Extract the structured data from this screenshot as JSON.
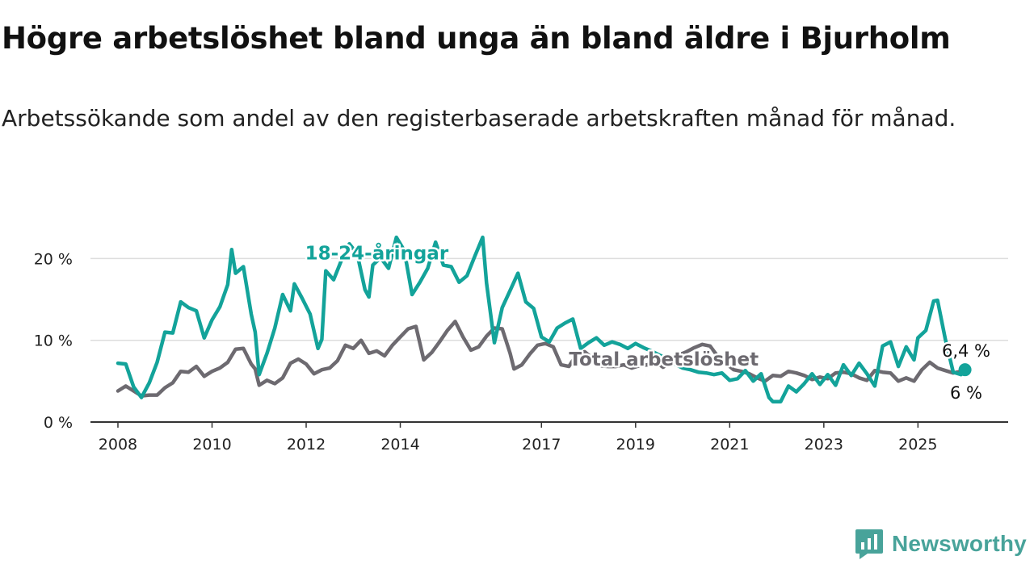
{
  "title": "Högre arbetslöshet bland unga än bland äldre i Bjurholm",
  "subtitle": "Arbetssökande som andel av den registerbaserade arbetskraften månad för månad.",
  "brand": {
    "name": "Newsworthy",
    "icon": "newsworthy-logo-icon",
    "color": "#48a39a"
  },
  "chart_data": {
    "type": "line",
    "title": "Högre arbetslöshet bland unga än bland äldre i Bjurholm",
    "subtitle": "Arbetssökande som andel av den registerbaserade arbetskraften månad för månad.",
    "x_ticks": [
      "2008",
      "2010",
      "2012",
      "2014",
      "2017",
      "2019",
      "2021",
      "2023",
      "2025"
    ],
    "y_ticks": [
      "0 %",
      "10 %",
      "20 %"
    ],
    "ylim": [
      0,
      23
    ],
    "xlim": [
      "2007-06",
      "2026-12"
    ],
    "grid": "horizontal",
    "legend": "inline labels on lines",
    "series": [
      {
        "name": "18-24-åringar",
        "color": "#13a39a",
        "end_label": "6,4 %",
        "points": [
          [
            "2008-01",
            7.2
          ],
          [
            "2008-03",
            7.1
          ],
          [
            "2008-05",
            4.3
          ],
          [
            "2008-07",
            3.0
          ],
          [
            "2008-09",
            4.8
          ],
          [
            "2008-11",
            7.3
          ],
          [
            "2009-01",
            11.0
          ],
          [
            "2009-03",
            10.9
          ],
          [
            "2009-05",
            14.7
          ],
          [
            "2009-07",
            14.0
          ],
          [
            "2009-09",
            13.6
          ],
          [
            "2009-11",
            10.3
          ],
          [
            "2010-01",
            12.5
          ],
          [
            "2010-03",
            14.1
          ],
          [
            "2010-05",
            16.8
          ],
          [
            "2010-06",
            21.1
          ],
          [
            "2010-07",
            18.2
          ],
          [
            "2010-09",
            19.0
          ],
          [
            "2010-11",
            13.2
          ],
          [
            "2010-12",
            11.0
          ],
          [
            "2011-01",
            5.8
          ],
          [
            "2011-03",
            8.4
          ],
          [
            "2011-05",
            11.5
          ],
          [
            "2011-07",
            15.6
          ],
          [
            "2011-09",
            13.6
          ],
          [
            "2011-10",
            16.9
          ],
          [
            "2011-12",
            15.1
          ],
          [
            "2012-02",
            13.2
          ],
          [
            "2012-04",
            9.0
          ],
          [
            "2012-05",
            10.1
          ],
          [
            "2012-06",
            18.5
          ],
          [
            "2012-08",
            17.4
          ],
          [
            "2012-10",
            19.8
          ],
          [
            "2012-12",
            21.8
          ],
          [
            "2013-02",
            20.6
          ],
          [
            "2013-04",
            16.2
          ],
          [
            "2013-05",
            15.3
          ],
          [
            "2013-06",
            19.2
          ],
          [
            "2013-08",
            20.1
          ],
          [
            "2013-10",
            18.8
          ],
          [
            "2013-12",
            22.6
          ],
          [
            "2014-02",
            21.0
          ],
          [
            "2014-04",
            15.6
          ],
          [
            "2014-06",
            17.1
          ],
          [
            "2014-08",
            18.8
          ],
          [
            "2014-10",
            22.0
          ],
          [
            "2014-12",
            19.2
          ],
          [
            "2015-02",
            19.0
          ],
          [
            "2015-04",
            17.1
          ],
          [
            "2015-06",
            17.9
          ],
          [
            "2015-08",
            20.3
          ],
          [
            "2015-10",
            22.6
          ],
          [
            "2015-11",
            17.0
          ],
          [
            "2016-01",
            9.7
          ],
          [
            "2016-03",
            14.0
          ],
          [
            "2016-05",
            16.1
          ],
          [
            "2016-07",
            18.2
          ],
          [
            "2016-09",
            14.7
          ],
          [
            "2016-11",
            13.9
          ],
          [
            "2017-01",
            10.4
          ],
          [
            "2017-03",
            9.8
          ],
          [
            "2017-05",
            11.5
          ],
          [
            "2017-07",
            12.1
          ],
          [
            "2017-09",
            12.6
          ],
          [
            "2017-11",
            9.0
          ],
          [
            "2018-01",
            9.7
          ],
          [
            "2018-03",
            10.3
          ],
          [
            "2018-05",
            9.4
          ],
          [
            "2018-07",
            9.8
          ],
          [
            "2018-09",
            9.5
          ],
          [
            "2018-11",
            9.0
          ],
          [
            "2019-01",
            9.6
          ],
          [
            "2019-03",
            9.1
          ],
          [
            "2019-05",
            8.7
          ],
          [
            "2019-07",
            8.2
          ],
          [
            "2019-09",
            7.8
          ],
          [
            "2019-11",
            7.1
          ],
          [
            "2020-01",
            6.6
          ],
          [
            "2020-03",
            6.4
          ],
          [
            "2020-05",
            6.1
          ],
          [
            "2020-07",
            6.0
          ],
          [
            "2020-09",
            5.8
          ],
          [
            "2020-11",
            6.0
          ],
          [
            "2021-01",
            5.1
          ],
          [
            "2021-03",
            5.3
          ],
          [
            "2021-05",
            6.3
          ],
          [
            "2021-07",
            5.0
          ],
          [
            "2021-09",
            5.9
          ],
          [
            "2021-11",
            3.0
          ],
          [
            "2021-12",
            2.5
          ],
          [
            "2022-02",
            2.5
          ],
          [
            "2022-04",
            4.4
          ],
          [
            "2022-06",
            3.7
          ],
          [
            "2022-08",
            4.7
          ],
          [
            "2022-10",
            5.9
          ],
          [
            "2022-12",
            4.6
          ],
          [
            "2023-02",
            5.8
          ],
          [
            "2023-04",
            4.5
          ],
          [
            "2023-06",
            7.0
          ],
          [
            "2023-08",
            5.7
          ],
          [
            "2023-10",
            7.2
          ],
          [
            "2023-12",
            5.9
          ],
          [
            "2024-02",
            4.4
          ],
          [
            "2024-04",
            9.3
          ],
          [
            "2024-06",
            9.8
          ],
          [
            "2024-08",
            6.8
          ],
          [
            "2024-10",
            9.2
          ],
          [
            "2024-12",
            7.6
          ],
          [
            "2025-01",
            10.3
          ],
          [
            "2025-03",
            11.2
          ],
          [
            "2025-05",
            14.8
          ],
          [
            "2025-06",
            14.9
          ],
          [
            "2025-08",
            10.1
          ],
          [
            "2025-10",
            6.1
          ],
          [
            "2025-12",
            5.8
          ],
          [
            "2026-01",
            6.4
          ]
        ]
      },
      {
        "name": "Total arbetslöshet",
        "color": "#6d6a70",
        "end_label": "6 %",
        "points": [
          [
            "2008-01",
            3.8
          ],
          [
            "2008-03",
            4.4
          ],
          [
            "2008-05",
            3.8
          ],
          [
            "2008-07",
            3.2
          ],
          [
            "2008-09",
            3.3
          ],
          [
            "2008-11",
            3.3
          ],
          [
            "2009-01",
            4.2
          ],
          [
            "2009-03",
            4.8
          ],
          [
            "2009-05",
            6.2
          ],
          [
            "2009-07",
            6.1
          ],
          [
            "2009-09",
            6.8
          ],
          [
            "2009-11",
            5.6
          ],
          [
            "2010-01",
            6.2
          ],
          [
            "2010-03",
            6.6
          ],
          [
            "2010-05",
            7.3
          ],
          [
            "2010-07",
            8.9
          ],
          [
            "2010-09",
            9.0
          ],
          [
            "2010-11",
            7.1
          ],
          [
            "2010-12",
            6.5
          ],
          [
            "2011-01",
            4.5
          ],
          [
            "2011-03",
            5.1
          ],
          [
            "2011-05",
            4.7
          ],
          [
            "2011-07",
            5.4
          ],
          [
            "2011-09",
            7.2
          ],
          [
            "2011-11",
            7.7
          ],
          [
            "2012-01",
            7.1
          ],
          [
            "2012-03",
            5.9
          ],
          [
            "2012-05",
            6.4
          ],
          [
            "2012-07",
            6.6
          ],
          [
            "2012-09",
            7.5
          ],
          [
            "2012-11",
            9.4
          ],
          [
            "2013-01",
            9.0
          ],
          [
            "2013-03",
            10.0
          ],
          [
            "2013-05",
            8.4
          ],
          [
            "2013-07",
            8.7
          ],
          [
            "2013-09",
            8.1
          ],
          [
            "2013-11",
            9.4
          ],
          [
            "2014-01",
            10.4
          ],
          [
            "2014-03",
            11.4
          ],
          [
            "2014-05",
            11.7
          ],
          [
            "2014-07",
            7.6
          ],
          [
            "2014-09",
            8.5
          ],
          [
            "2014-11",
            9.8
          ],
          [
            "2015-01",
            11.2
          ],
          [
            "2015-03",
            12.3
          ],
          [
            "2015-05",
            10.4
          ],
          [
            "2015-07",
            8.8
          ],
          [
            "2015-09",
            9.2
          ],
          [
            "2015-11",
            10.5
          ],
          [
            "2016-01",
            11.5
          ],
          [
            "2016-03",
            11.4
          ],
          [
            "2016-05",
            8.4
          ],
          [
            "2016-06",
            6.5
          ],
          [
            "2016-08",
            7.0
          ],
          [
            "2016-10",
            8.3
          ],
          [
            "2016-12",
            9.4
          ],
          [
            "2017-02",
            9.6
          ],
          [
            "2017-04",
            9.2
          ],
          [
            "2017-06",
            7.0
          ],
          [
            "2017-08",
            6.8
          ],
          [
            "2017-10",
            8.3
          ],
          [
            "2017-12",
            8.6
          ],
          [
            "2018-02",
            7.8
          ],
          [
            "2018-04",
            6.9
          ],
          [
            "2018-06",
            6.8
          ],
          [
            "2018-08",
            6.8
          ],
          [
            "2018-10",
            7.0
          ],
          [
            "2018-12",
            6.6
          ],
          [
            "2019-02",
            6.9
          ],
          [
            "2019-04",
            7.0
          ],
          [
            "2019-06",
            7.4
          ],
          [
            "2019-08",
            6.7
          ],
          [
            "2019-10",
            7.3
          ],
          [
            "2019-12",
            8.2
          ],
          [
            "2020-02",
            8.6
          ],
          [
            "2020-04",
            9.1
          ],
          [
            "2020-06",
            9.5
          ],
          [
            "2020-08",
            9.3
          ],
          [
            "2020-10",
            8.0
          ],
          [
            "2020-12",
            7.2
          ],
          [
            "2021-02",
            6.4
          ],
          [
            "2021-04",
            6.2
          ],
          [
            "2021-06",
            5.9
          ],
          [
            "2021-08",
            5.4
          ],
          [
            "2021-10",
            5.0
          ],
          [
            "2021-12",
            5.7
          ],
          [
            "2022-02",
            5.6
          ],
          [
            "2022-04",
            6.2
          ],
          [
            "2022-06",
            6.0
          ],
          [
            "2022-08",
            5.7
          ],
          [
            "2022-10",
            5.2
          ],
          [
            "2022-12",
            5.5
          ],
          [
            "2023-02",
            5.3
          ],
          [
            "2023-04",
            6.0
          ],
          [
            "2023-06",
            6.1
          ],
          [
            "2023-08",
            5.9
          ],
          [
            "2023-10",
            5.4
          ],
          [
            "2023-12",
            5.1
          ],
          [
            "2024-02",
            6.3
          ],
          [
            "2024-04",
            6.1
          ],
          [
            "2024-06",
            6.0
          ],
          [
            "2024-08",
            5.0
          ],
          [
            "2024-10",
            5.4
          ],
          [
            "2024-12",
            5.0
          ],
          [
            "2025-02",
            6.4
          ],
          [
            "2025-04",
            7.3
          ],
          [
            "2025-06",
            6.6
          ],
          [
            "2025-08",
            6.3
          ],
          [
            "2025-10",
            6.0
          ],
          [
            "2025-12",
            6.2
          ],
          [
            "2026-01",
            6.0
          ]
        ]
      }
    ]
  }
}
